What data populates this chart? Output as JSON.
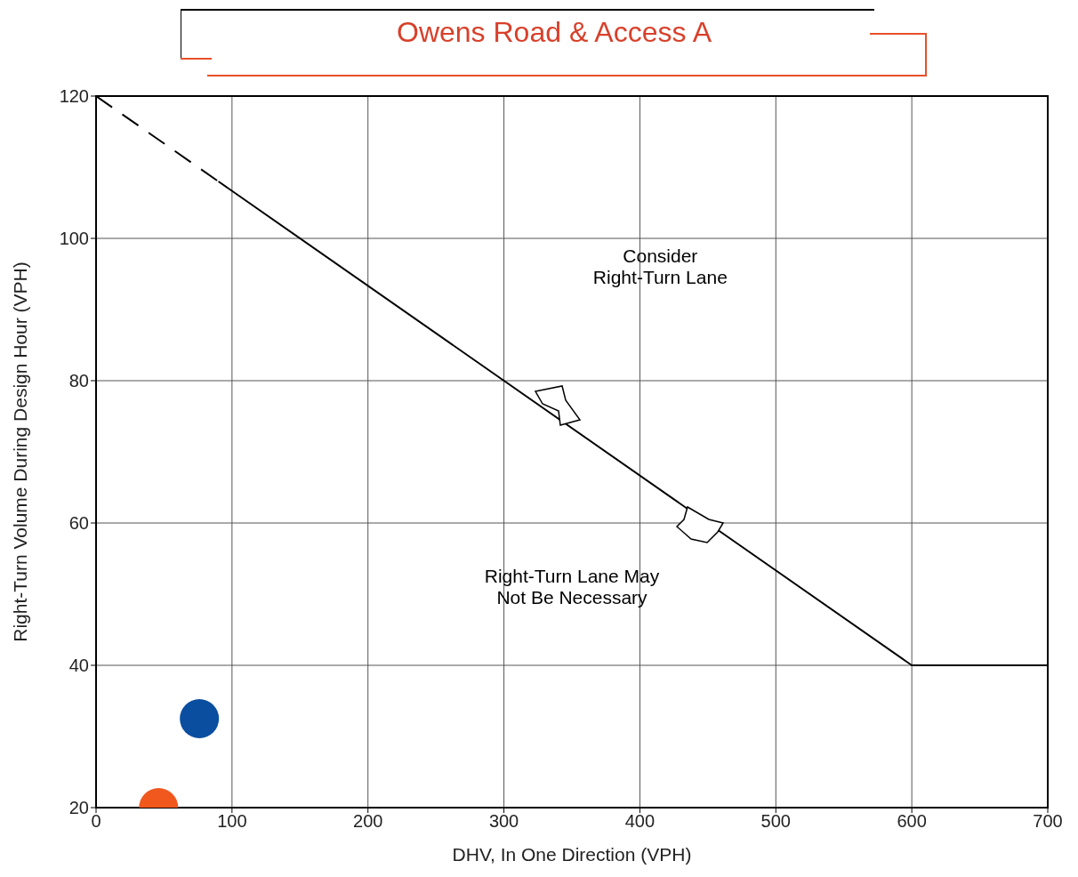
{
  "chart_data": {
    "type": "line",
    "title": "Owens Road & Access A",
    "xlabel": "DHV, In One Direction (VPH)",
    "ylabel": "Right-Turn Volume During Design Hour (VPH)",
    "xlim": [
      0,
      700
    ],
    "xticks": [
      0,
      100,
      200,
      300,
      400,
      500,
      600,
      700
    ],
    "ylim": [
      20,
      120
    ],
    "yticks": [
      20,
      40,
      60,
      80,
      100,
      120
    ],
    "grid": true,
    "legend": false,
    "series": [
      {
        "x": [
          0,
          90
        ],
        "values": [
          120,
          108
        ],
        "color": "#000000",
        "line_style": "dashed",
        "marker": "none"
      },
      {
        "x": [
          90,
          600,
          700
        ],
        "values": [
          108,
          40,
          40
        ],
        "color": "#000000",
        "line_style": "solid",
        "marker": "none"
      },
      {
        "type": "scatter",
        "x": [
          76
        ],
        "values": [
          32.5
        ],
        "color": "#0a4ea0",
        "marker": "circle"
      },
      {
        "type": "scatter",
        "x": [
          46
        ],
        "values": [
          20
        ],
        "color": "#f0581e",
        "marker": "circle"
      }
    ],
    "annotations": [
      "Consider\nRight-Turn Lane",
      "Right-Turn Lane May\nNot Be Necessary"
    ]
  }
}
